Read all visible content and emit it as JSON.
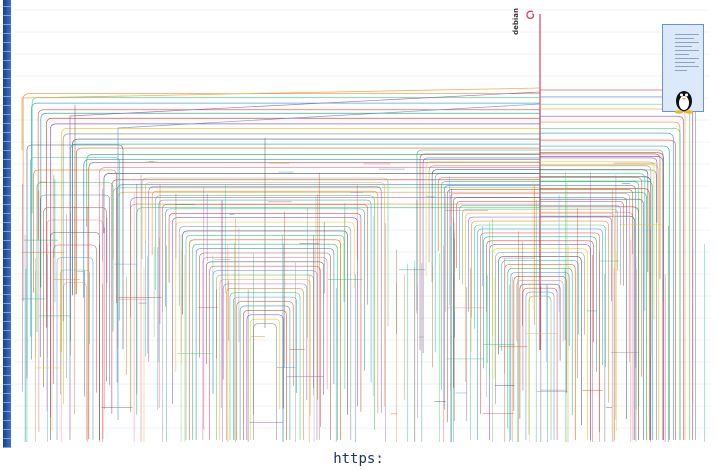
{
  "diagram": {
    "root_label": "debian",
    "legend_title": "",
    "caption": "https:"
  },
  "colors": {
    "background": "#ffffff",
    "ruler": "#2b5cc4",
    "legend_panel": "#dbe9fb",
    "trunk": "#d6455d",
    "caption": "#1d3560"
  },
  "icons": {
    "logo": "debian-swirl-icon",
    "mascot": "tux-penguin-icon"
  }
}
